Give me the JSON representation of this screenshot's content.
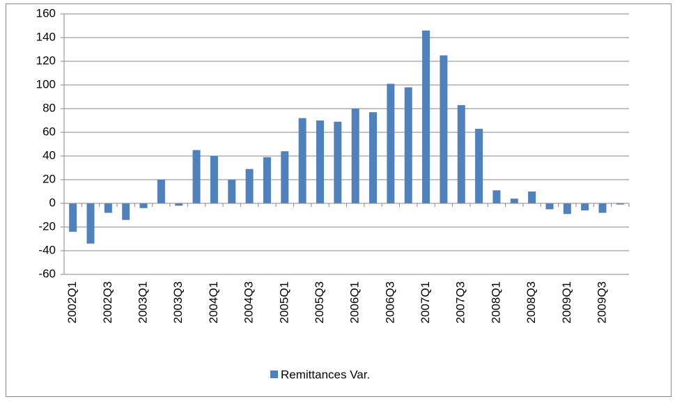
{
  "chart_data": {
    "type": "bar",
    "categories": [
      "2002Q1",
      null,
      "2002Q3",
      null,
      "2003Q1",
      null,
      "2003Q3",
      null,
      "2004Q1",
      null,
      "2004Q3",
      null,
      "2005Q1",
      null,
      "2005Q3",
      null,
      "2006Q1",
      null,
      "2006Q3",
      null,
      "2007Q1",
      null,
      "2007Q3",
      null,
      "2008Q1",
      null,
      "2008Q3",
      null,
      "2009Q1",
      null,
      "2009Q3",
      null
    ],
    "series": [
      {
        "name": "Remittances Var.",
        "color": "#4f81bd",
        "values": [
          -24,
          -34,
          -8,
          -14,
          -4,
          20,
          -2,
          45,
          40,
          20,
          29,
          39,
          44,
          72,
          70,
          69,
          80,
          77,
          101,
          98,
          146,
          125,
          83,
          63,
          11,
          4,
          10,
          -5,
          -9,
          -6,
          -8,
          -1
        ]
      }
    ],
    "ylim": [
      -60,
      160
    ],
    "yticks": [
      -60,
      -40,
      -20,
      0,
      20,
      40,
      60,
      80,
      100,
      120,
      140,
      160
    ],
    "grid": true,
    "legend": "bottom"
  }
}
